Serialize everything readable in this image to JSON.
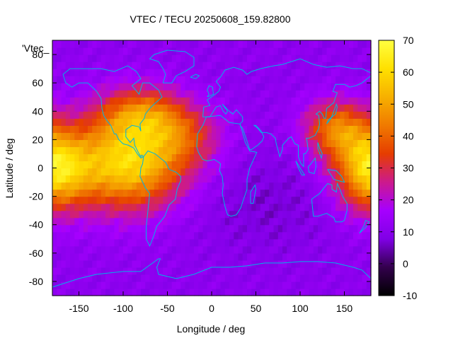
{
  "chart_data": {
    "type": "heatmap",
    "title": "VTEC / TECU 20250608_159.82800",
    "xlabel": "Longitude / deg",
    "ylabel": "Latitude / deg",
    "series_key": "'Vtec_",
    "xlim": [
      -180,
      180
    ],
    "ylim": [
      -90,
      90
    ],
    "x_ticks": [
      "-150",
      "-100",
      "-50",
      "0",
      "50",
      "100",
      "150"
    ],
    "y_ticks": [
      "-80",
      "-60",
      "-40",
      "-20",
      "0",
      "20",
      "40",
      "60",
      "80"
    ],
    "colorbar": {
      "range": [
        -10,
        70
      ],
      "ticks": [
        "-10",
        "0",
        "10",
        "20",
        "30",
        "40",
        "50",
        "60",
        "70"
      ],
      "colormap": [
        "#000000",
        "#33004d",
        "#8000e6",
        "#a600ff",
        "#cc1a8c",
        "#e63d00",
        "#f07a00",
        "#f7b000",
        "#ffe000",
        "#ffff40"
      ]
    },
    "grid_spacing_deg": [
      5,
      5
    ],
    "background_vtec": 11,
    "features": [
      {
        "label": "American equatorial peak",
        "lon": -95,
        "lat": 5,
        "vtec": 62
      },
      {
        "label": "Pacific west peak",
        "lon": -180,
        "lat": -2,
        "vtec": 60
      },
      {
        "label": "Pacific east peak",
        "lon": 180,
        "lat": 0,
        "vtec": 59
      },
      {
        "label": "Northern American band",
        "lon": -75,
        "lat": 35,
        "vtec": 42
      },
      {
        "label": "Atlantic band",
        "lon": -20,
        "lat": 25,
        "vtec": 28
      },
      {
        "label": "Western Asia band",
        "lon": 135,
        "lat": 25,
        "vtec": 45
      }
    ],
    "coastline_color": "#00b4e6"
  }
}
